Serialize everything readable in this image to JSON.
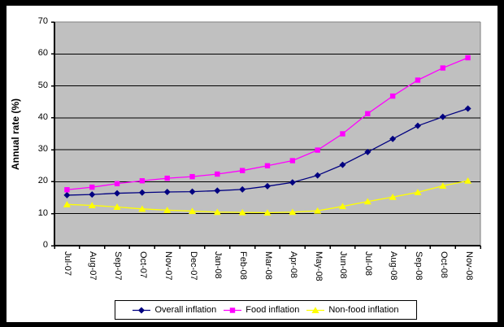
{
  "chart_data": {
    "type": "line",
    "title": "",
    "xlabel": "",
    "ylabel": "Annual rate (%)",
    "ylim": [
      0,
      70
    ],
    "yticks": [
      0,
      10,
      20,
      30,
      40,
      50,
      60,
      70
    ],
    "grid": "horizontal",
    "legend_position": "bottom",
    "plot_bg_color": "#c0c0c0",
    "gridline_color": "#000000",
    "plot_border_color": "#808080",
    "categories": [
      "Jul-07",
      "Aug-07",
      "Sep-07",
      "Oct-07",
      "Nov-07",
      "Dec-07",
      "Jan-08",
      "Feb-08",
      "Mar-08",
      "Apr-08",
      "May-08",
      "Jun-08",
      "Jul-08",
      "Aug-08",
      "Sep-08",
      "Oct-08",
      "Nov-08"
    ],
    "series": [
      {
        "name": "Overall inflation",
        "marker": "diamond",
        "color": "#000080",
        "values": [
          15.8,
          16.0,
          16.4,
          16.6,
          16.8,
          16.9,
          17.2,
          17.6,
          18.6,
          19.8,
          22.0,
          25.3,
          29.3,
          33.4,
          37.5,
          40.3,
          42.9
        ]
      },
      {
        "name": "Food inflation",
        "marker": "square",
        "color": "#ff00ff",
        "values": [
          17.5,
          18.3,
          19.4,
          20.3,
          21.1,
          21.6,
          22.4,
          23.5,
          25.0,
          26.6,
          29.9,
          35.0,
          41.3,
          46.8,
          51.8,
          55.6,
          58.8
        ]
      },
      {
        "name": "Non-food inflation",
        "marker": "triangle",
        "color": "#ffff00",
        "values": [
          12.9,
          12.6,
          12.1,
          11.5,
          11.1,
          10.8,
          10.5,
          10.4,
          10.3,
          10.5,
          10.9,
          12.3,
          13.8,
          15.2,
          16.7,
          18.7,
          20.3
        ]
      }
    ]
  }
}
